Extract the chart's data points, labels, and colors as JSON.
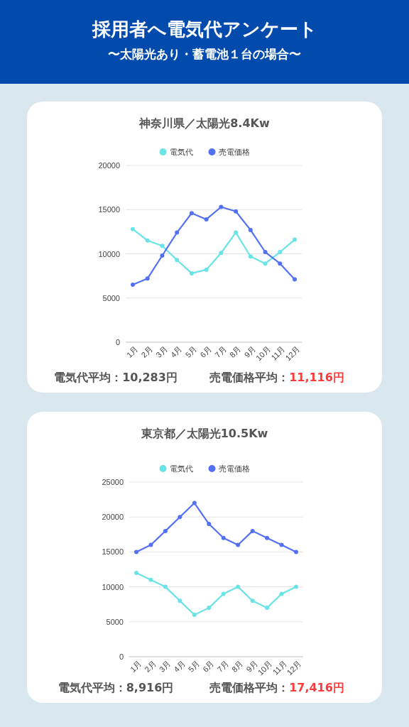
{
  "chart_data": [
    {
      "type": "other",
      "title": "採用者へ電気代アンケート",
      "subtitle": "〜太陽光あり・蓄電池１台の場合〜"
    },
    {
      "type": "line",
      "title": "神奈川県／太陽光8.4Kw",
      "categories": [
        "1月",
        "2月",
        "3月",
        "4月",
        "5月",
        "6月",
        "7月",
        "8月",
        "9月",
        "10月",
        "11月",
        "12月"
      ],
      "series": [
        {
          "name": "電気代",
          "color": "#6ae3e6",
          "values": [
            12800,
            11500,
            10900,
            9300,
            7800,
            8200,
            10100,
            12400,
            9700,
            8900,
            10200,
            11600
          ]
        },
        {
          "name": "売電価格",
          "color": "#5470f5",
          "values": [
            6500,
            7200,
            9800,
            12400,
            14600,
            13900,
            15300,
            14800,
            12700,
            10200,
            8900,
            7100
          ]
        }
      ],
      "ylim": [
        0,
        20000
      ],
      "yticks": [
        0,
        5000,
        10000,
        15000,
        20000
      ],
      "grid": "y",
      "legend": "top",
      "marker": "circle",
      "annotations": [
        "電気代平均：10,283円",
        "売電価格平均：11,116円"
      ]
    },
    {
      "type": "line",
      "title": "東京都／太陽光10.5Kw",
      "categories": [
        "1月",
        "2月",
        "3月",
        "4月",
        "5月",
        "6月",
        "7月",
        "8月",
        "9月",
        "10月",
        "11月",
        "12月"
      ],
      "series": [
        {
          "name": "電気代",
          "color": "#6ae3e6",
          "values": [
            12000,
            11000,
            10000,
            8000,
            6000,
            7000,
            9000,
            10000,
            8000,
            7000,
            9000,
            10000
          ]
        },
        {
          "name": "売電価格",
          "color": "#5470f5",
          "values": [
            15000,
            16000,
            18000,
            20000,
            22000,
            19000,
            17000,
            16000,
            18000,
            17000,
            16000,
            15000
          ]
        }
      ],
      "ylim": [
        0,
        25000
      ],
      "yticks": [
        0,
        5000,
        10000,
        15000,
        20000,
        25000
      ],
      "grid": "y",
      "legend": "top",
      "marker": "circle",
      "annotations": [
        "電気代平均：8,916円",
        "売電価格平均：17,416円"
      ]
    }
  ]
}
